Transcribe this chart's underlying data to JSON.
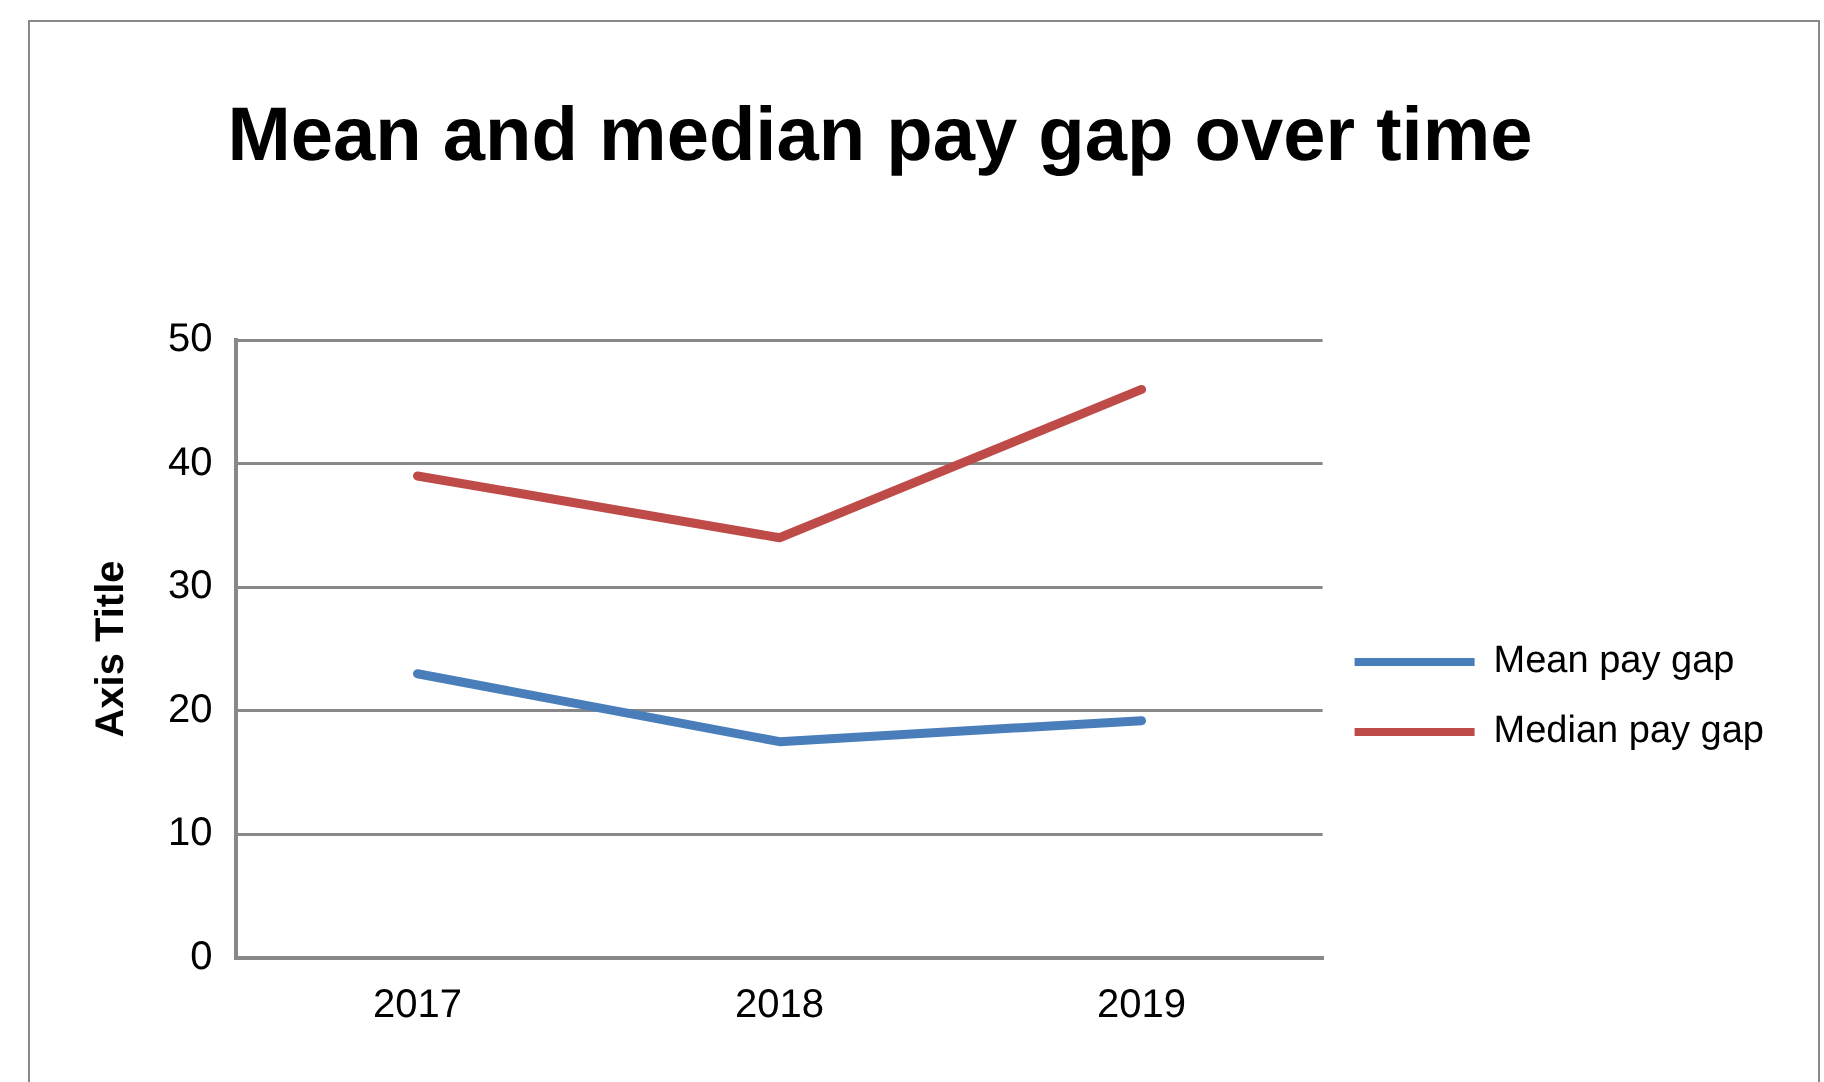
{
  "chart_data": {
    "type": "line",
    "title": "Mean and median pay gap over time",
    "ylabel": "Axis Title",
    "categories": [
      "2017",
      "2018",
      "2019"
    ],
    "series": [
      {
        "name": "Mean pay gap",
        "color": "#4a7ebb",
        "values": [
          23,
          17.5,
          19.2
        ]
      },
      {
        "name": "Median pay gap",
        "color": "#be4b48",
        "values": [
          39,
          34,
          46
        ]
      }
    ],
    "ylim": [
      0,
      50
    ],
    "yticks": [
      0,
      10,
      20,
      30,
      40,
      50
    ],
    "grid": "y",
    "legend": "right",
    "marker": "none",
    "line_style": "solid"
  }
}
